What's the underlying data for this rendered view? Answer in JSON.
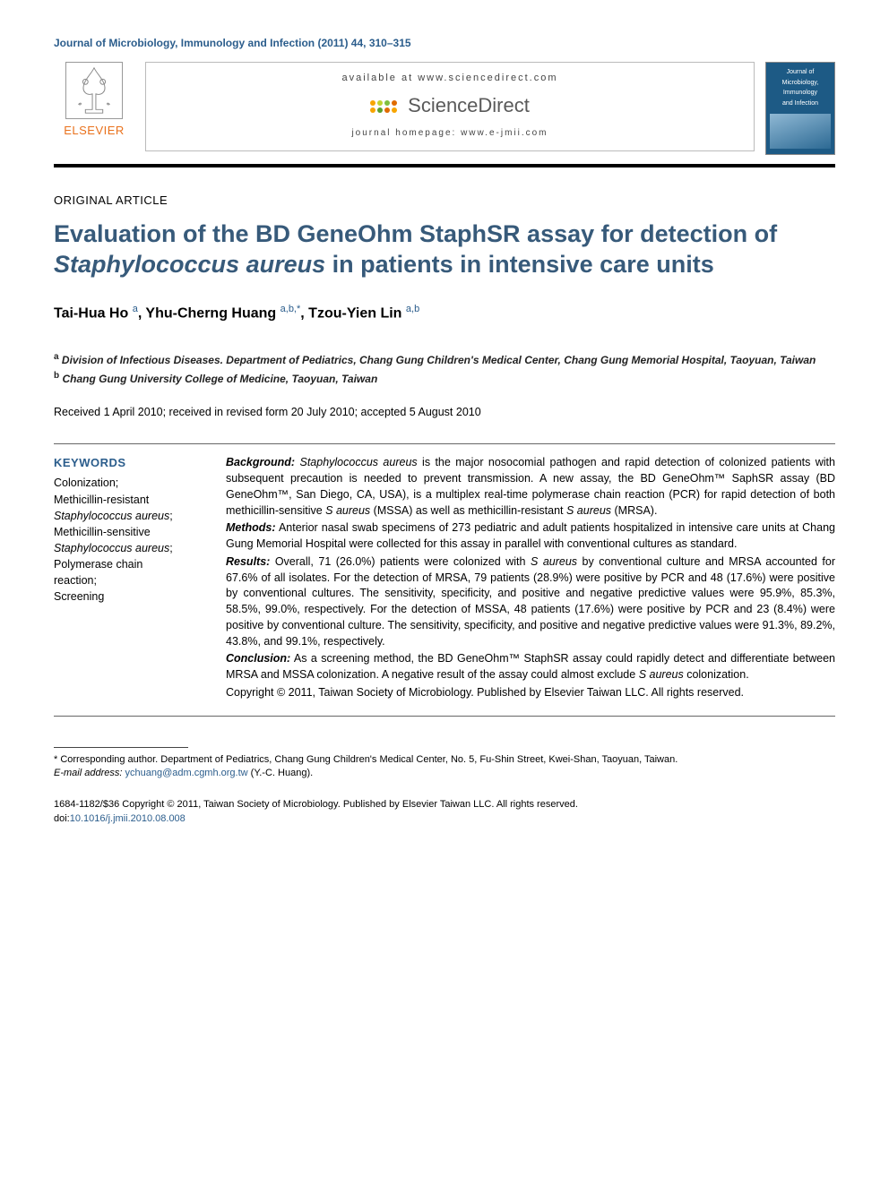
{
  "journalHeader": "Journal of Microbiology, Immunology and Infection (2011) 44, 310–315",
  "masthead": {
    "elsevierLabel": "ELSEVIER",
    "availableAt": "available at www.sciencedirect.com",
    "sdText": "ScienceDirect",
    "sdDotColors": [
      "#f7a500",
      "#c0d330",
      "#7fbf3f",
      "#e06b00",
      "#f7a500",
      "#5aa02c",
      "#e06b00",
      "#f7a500"
    ],
    "homepage": "journal homepage: www.e-jmii.com",
    "coverLine1": "Journal of",
    "coverLine2": "Microbiology,",
    "coverLine3": "Immunology",
    "coverLine4": "and Infection"
  },
  "articleType": "ORIGINAL ARTICLE",
  "titleParts": {
    "pre": "Evaluation of the BD GeneOhm StaphSR assay for detection of ",
    "italic": "Staphylococcus aureus",
    "post": " in patients in intensive care units"
  },
  "authors": [
    {
      "name": "Tai-Hua Ho",
      "affil": "a"
    },
    {
      "name": "Yhu-Cherng Huang",
      "affil": "a,b,*"
    },
    {
      "name": "Tzou-Yien Lin",
      "affil": "a,b"
    }
  ],
  "affiliations": [
    {
      "sup": "a",
      "text": "Division of Infectious Diseases. Department of Pediatrics, Chang Gung Children's Medical Center, Chang Gung Memorial Hospital, Taoyuan, Taiwan"
    },
    {
      "sup": "b",
      "text": "Chang Gung University College of Medicine, Taoyuan, Taiwan"
    }
  ],
  "dates": "Received 1 April 2010; received in revised form 20 July 2010; accepted 5 August 2010",
  "keywords": {
    "heading": "KEYWORDS",
    "items": [
      "Colonization;",
      "Methicillin-resistant",
      "<em>Staphylococcus aureus</em>;",
      "Methicillin-sensitive",
      "<em>Staphylococcus aureus</em>;",
      "Polymerase chain",
      "reaction;",
      "Screening"
    ]
  },
  "abstract": {
    "background": "<span class=\"abstract-label\">Background:</span> <em>Staphylococcus aureus</em> is the major nosocomial pathogen and rapid detection of colonized patients with subsequent precaution is needed to prevent transmission. A new assay, the BD GeneOhm™ SaphSR assay (BD GeneOhm™, San Diego, CA, USA), is a multiplex real-time polymerase chain reaction (PCR) for rapid detection of both methicillin-sensitive <em>S aureus</em> (MSSA) as well as methicillin-resistant <em>S aureus</em> (MRSA).",
    "methods": "<span class=\"abstract-label\">Methods:</span> Anterior nasal swab specimens of 273 pediatric and adult patients hospitalized in intensive care units at Chang Gung Memorial Hospital were collected for this assay in parallel with conventional cultures as standard.",
    "results": "<span class=\"abstract-label\">Results:</span> Overall, 71 (26.0%) patients were colonized with <em>S aureus</em> by conventional culture and MRSA accounted for 67.6% of all isolates. For the detection of MRSA, 79 patients (28.9%) were positive by PCR and 48 (17.6%) were positive by conventional cultures. The sensitivity, specificity, and positive and negative predictive values were 95.9%, 85.3%, 58.5%, 99.0%, respectively. For the detection of MSSA, 48 patients (17.6%) were positive by PCR and 23 (8.4%) were positive by conventional culture. The sensitivity, specificity, and positive and negative predictive values were 91.3%, 89.2%, 43.8%, and 99.1%, respectively.",
    "conclusion": "<span class=\"abstract-label\">Conclusion:</span> As a screening method, the BD GeneOhm™ StaphSR assay could rapidly detect and differentiate between MRSA and MSSA colonization. A negative result of the assay could almost exclude <em>S aureus</em> colonization.",
    "copyright": "Copyright © 2011, Taiwan Society of Microbiology. Published by Elsevier Taiwan LLC. All rights reserved."
  },
  "footnotes": {
    "corresponding": "* Corresponding author. Department of Pediatrics, Chang Gung Children's Medical Center, No. 5, Fu-Shin Street, Kwei-Shan, Taoyuan, Taiwan.",
    "emailLabel": "E-mail address:",
    "email": "ychuang@adm.cgmh.org.tw",
    "emailAuthor": "(Y.-C. Huang)."
  },
  "footer": {
    "line1": "1684-1182/$36 Copyright © 2011, Taiwan Society of Microbiology. Published by Elsevier Taiwan LLC. All rights reserved.",
    "doiLabel": "doi:",
    "doi": "10.1016/j.jmii.2010.08.008"
  },
  "colors": {
    "headerBlue": "#2b5d8c",
    "titleBlue": "#375a7a",
    "elsevierOrange": "#e9711c",
    "coverBlue": "#1d5a85"
  }
}
